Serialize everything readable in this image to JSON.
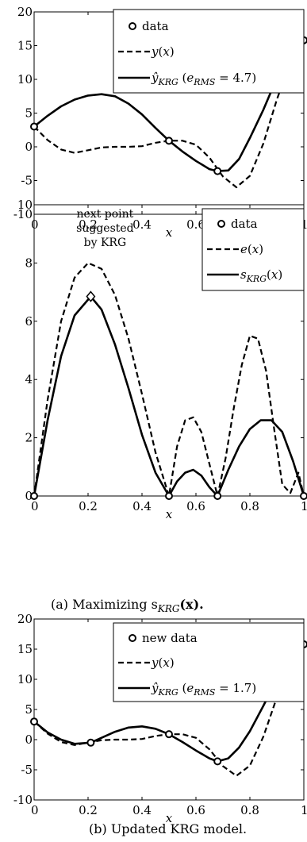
{
  "chart_data": [
    {
      "type": "line",
      "xlabel": "x",
      "xlim": [
        0,
        1
      ],
      "ylim": [
        -10,
        20
      ],
      "xticks": [
        "0",
        "0.2",
        "0.4",
        "0.6",
        "0.8",
        "1"
      ],
      "yticks": [
        "-10",
        "-5",
        "0",
        "5",
        "10",
        "15",
        "20"
      ],
      "legend": {
        "position": "top-right",
        "entries": [
          "data",
          "y(x)",
          "ŷKRG (eRMS = 4.7)"
        ]
      },
      "series": [
        {
          "name": "data",
          "style": "markers",
          "x": [
            0,
            0.5,
            0.68,
            1
          ],
          "y": [
            3,
            0.9,
            -3.6,
            15.8
          ]
        },
        {
          "name": "y(x)",
          "style": "dashed",
          "x": [
            0,
            0.05,
            0.1,
            0.15,
            0.2,
            0.25,
            0.3,
            0.35,
            0.4,
            0.45,
            0.5,
            0.55,
            0.6,
            0.65,
            0.7,
            0.75,
            0.8,
            0.85,
            0.9,
            0.95,
            1
          ],
          "y": [
            3,
            1.0,
            -0.4,
            -0.9,
            -0.5,
            -0.1,
            0.0,
            0.0,
            0.1,
            0.6,
            0.9,
            0.9,
            0.3,
            -1.6,
            -4.4,
            -6.0,
            -4.3,
            0.5,
            7.0,
            12.6,
            15.8
          ]
        },
        {
          "name": "ŷKRG (eRMS = 4.7)",
          "style": "solid",
          "x": [
            0,
            0.05,
            0.1,
            0.15,
            0.2,
            0.25,
            0.3,
            0.35,
            0.4,
            0.45,
            0.5,
            0.55,
            0.6,
            0.65,
            0.68,
            0.72,
            0.76,
            0.8,
            0.85,
            0.9,
            0.95,
            1
          ],
          "y": [
            3,
            4.6,
            6.0,
            7.0,
            7.6,
            7.8,
            7.5,
            6.4,
            4.8,
            2.8,
            0.9,
            -0.7,
            -2.1,
            -3.3,
            -3.6,
            -3.5,
            -1.8,
            1.3,
            5.5,
            10.2,
            13.7,
            15.8
          ]
        }
      ]
    },
    {
      "type": "line",
      "xlabel": "x",
      "xlim": [
        0,
        1
      ],
      "ylim": [
        0,
        10
      ],
      "xticks": [
        "0",
        "0.2",
        "0.4",
        "0.6",
        "0.8",
        "1"
      ],
      "yticks": [
        "0",
        "2",
        "4",
        "6",
        "8",
        "10"
      ],
      "legend": {
        "position": "top-right",
        "entries": [
          "data",
          "e(x)",
          "sKRG(x)"
        ]
      },
      "annotation": {
        "lines": [
          "next point",
          "suggested",
          "by KRG"
        ],
        "x": 0.21,
        "y": 6.85
      },
      "series": [
        {
          "name": "data",
          "style": "markers",
          "x": [
            0,
            0.5,
            0.68,
            1
          ],
          "y": [
            0,
            0,
            0,
            0
          ]
        },
        {
          "name": "e(x)",
          "style": "dashed",
          "x": [
            0,
            0.05,
            0.1,
            0.15,
            0.2,
            0.25,
            0.3,
            0.35,
            0.4,
            0.45,
            0.5,
            0.53,
            0.56,
            0.59,
            0.62,
            0.65,
            0.68,
            0.71,
            0.74,
            0.77,
            0.8,
            0.83,
            0.86,
            0.89,
            0.92,
            0.95,
            0.98,
            1
          ],
          "y": [
            0,
            3.3,
            6.0,
            7.5,
            8.0,
            7.8,
            6.9,
            5.4,
            3.5,
            1.5,
            0,
            1.7,
            2.6,
            2.7,
            2.2,
            1.1,
            0,
            1.3,
            3.0,
            4.5,
            5.5,
            5.4,
            4.3,
            2.3,
            0.4,
            0.1,
            0.8,
            0
          ]
        },
        {
          "name": "sKRG(x)",
          "style": "solid",
          "x": [
            0,
            0.05,
            0.1,
            0.15,
            0.21,
            0.25,
            0.3,
            0.35,
            0.4,
            0.45,
            0.5,
            0.53,
            0.56,
            0.59,
            0.62,
            0.65,
            0.68,
            0.72,
            0.76,
            0.8,
            0.84,
            0.88,
            0.92,
            0.96,
            1
          ],
          "y": [
            0,
            2.6,
            4.8,
            6.2,
            6.85,
            6.4,
            5.2,
            3.7,
            2.1,
            0.8,
            0,
            0.5,
            0.8,
            0.9,
            0.7,
            0.3,
            0,
            0.9,
            1.7,
            2.3,
            2.6,
            2.6,
            2.2,
            1.2,
            0
          ]
        },
        {
          "name": "next point",
          "style": "diamond",
          "x": [
            0.21
          ],
          "y": [
            6.85
          ]
        }
      ]
    },
    {
      "type": "line",
      "xlabel": "x",
      "xlim": [
        0,
        1
      ],
      "ylim": [
        -10,
        20
      ],
      "xticks": [
        "0",
        "0.2",
        "0.4",
        "0.6",
        "0.8",
        "1"
      ],
      "yticks": [
        "-10",
        "-5",
        "0",
        "5",
        "10",
        "15",
        "20"
      ],
      "legend": {
        "position": "top-right",
        "entries": [
          "new data",
          "y(x)",
          "ŷKRG (eRMS = 1.7)"
        ]
      },
      "series": [
        {
          "name": "new data",
          "style": "markers",
          "x": [
            0,
            0.21,
            0.5,
            0.68,
            1
          ],
          "y": [
            3,
            -0.5,
            0.9,
            -3.6,
            15.8
          ]
        },
        {
          "name": "y(x)",
          "style": "dashed",
          "x": [
            0,
            0.05,
            0.1,
            0.15,
            0.2,
            0.25,
            0.3,
            0.35,
            0.4,
            0.45,
            0.5,
            0.55,
            0.6,
            0.65,
            0.7,
            0.75,
            0.8,
            0.85,
            0.9,
            0.95,
            1
          ],
          "y": [
            3,
            1.0,
            -0.4,
            -0.9,
            -0.5,
            -0.1,
            0.0,
            0.0,
            0.1,
            0.6,
            0.9,
            0.9,
            0.3,
            -1.6,
            -4.4,
            -6.0,
            -4.3,
            0.5,
            7.0,
            12.6,
            15.8
          ]
        },
        {
          "name": "ŷKRG (eRMS = 1.7)",
          "style": "solid",
          "x": [
            0,
            0.05,
            0.1,
            0.15,
            0.21,
            0.25,
            0.3,
            0.35,
            0.4,
            0.45,
            0.5,
            0.55,
            0.6,
            0.65,
            0.68,
            0.72,
            0.76,
            0.8,
            0.85,
            0.9,
            0.95,
            1
          ],
          "y": [
            3,
            1.2,
            0.0,
            -0.7,
            -0.5,
            0.3,
            1.3,
            2.0,
            2.2,
            1.8,
            0.9,
            -0.4,
            -1.8,
            -3.1,
            -3.6,
            -3.1,
            -1.3,
            1.4,
            5.6,
            10.0,
            13.6,
            15.8
          ]
        }
      ]
    }
  ],
  "captions": {
    "a": "(a) Maximizing s",
    "a_sub": "KRG",
    "a_arg": "(x).",
    "b": "(b) Updated KRG model."
  }
}
